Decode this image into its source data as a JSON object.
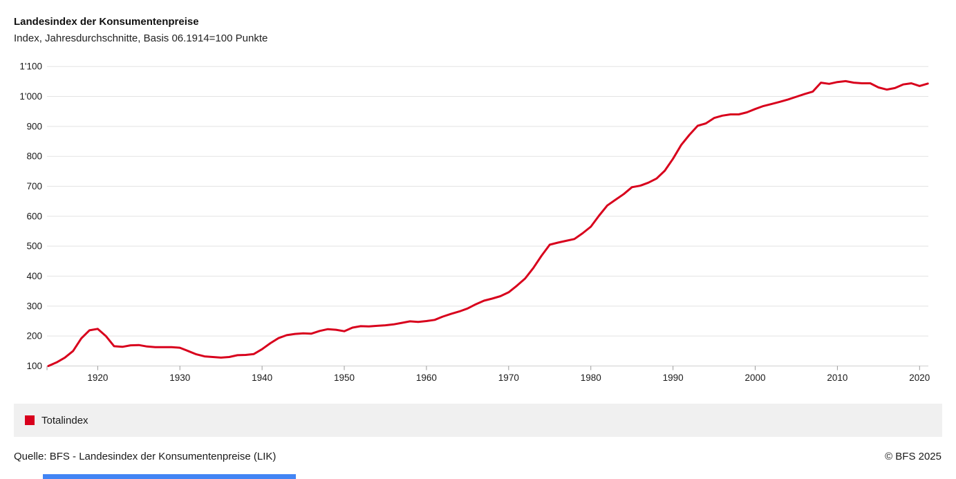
{
  "header": {
    "title": "Landesindex der Konsumentenpreise",
    "subtitle": "Index, Jahresdurchschnitte, Basis 06.1914=100 Punkte"
  },
  "legend": {
    "label": "Totalindex",
    "swatch_color": "#d8001c",
    "background_color": "#f0f0f0"
  },
  "footer": {
    "source": "Quelle: BFS - Landesindex der Konsumentenpreise (LIK)",
    "copyright": "© BFS 2025"
  },
  "ui": {
    "scrollbar_color": "#4285f4"
  },
  "chart_data": {
    "type": "line",
    "title": "Landesindex der Konsumentenpreise",
    "subtitle": "Index, Jahresdurchschnitte, Basis 06.1914=100 Punkte",
    "xlabel": "",
    "ylabel": "",
    "xlim": [
      1914,
      2021
    ],
    "ylim": [
      100,
      1100
    ],
    "x_ticks": [
      1920,
      1930,
      1940,
      1950,
      1960,
      1970,
      1980,
      1990,
      2000,
      2010,
      2020
    ],
    "y_ticks": [
      100,
      200,
      300,
      400,
      500,
      600,
      700,
      800,
      900,
      1000,
      1100
    ],
    "y_tick_labels": [
      "100",
      "200",
      "300",
      "400",
      "500",
      "600",
      "700",
      "800",
      "900",
      "1'000",
      "1'100"
    ],
    "grid": "horizontal",
    "legend_position": "bottom",
    "line_color": "#d8001c",
    "grid_color": "#e3e3e3",
    "axis_color": "#cfcfcf",
    "tick_text_color": "#1a1a1a",
    "x_start": 1914,
    "x_step": 1,
    "series": [
      {
        "name": "Totalindex",
        "color": "#d8001c",
        "values": [
          100,
          112,
          128,
          150,
          192,
          219,
          224,
          200,
          166,
          164,
          169,
          170,
          165,
          163,
          163,
          163,
          161,
          150,
          139,
          132,
          130,
          128,
          130,
          136,
          137,
          140,
          156,
          176,
          193,
          203,
          207,
          209,
          208,
          217,
          223,
          221,
          216,
          228,
          233,
          232,
          234,
          236,
          239,
          244,
          249,
          247,
          250,
          254,
          265,
          274,
          282,
          292,
          306,
          318,
          325,
          333,
          346,
          368,
          392,
          427,
          468,
          505,
          512,
          518,
          524,
          543,
          565,
          602,
          636,
          655,
          674,
          697,
          702,
          712,
          726,
          752,
          792,
          838,
          872,
          902,
          910,
          928,
          936,
          940,
          940,
          947,
          958,
          968,
          975,
          982,
          990,
          999,
          1008,
          1016,
          1046,
          1042,
          1048,
          1051,
          1046,
          1044,
          1044,
          1030,
          1023,
          1028,
          1040,
          1044,
          1035,
          1043
        ]
      }
    ]
  }
}
